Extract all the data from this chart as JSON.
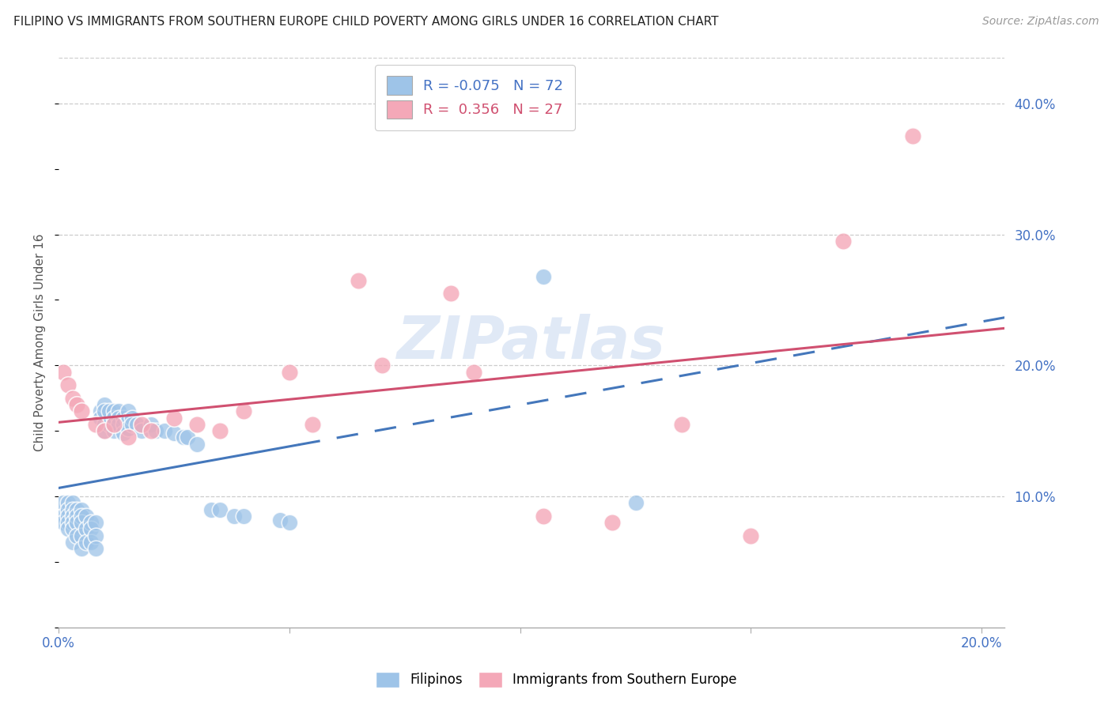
{
  "title": "FILIPINO VS IMMIGRANTS FROM SOUTHERN EUROPE CHILD POVERTY AMONG GIRLS UNDER 16 CORRELATION CHART",
  "source": "Source: ZipAtlas.com",
  "ylabel": "Child Poverty Among Girls Under 16",
  "xlim": [
    0.0,
    0.205
  ],
  "ylim": [
    0.0,
    0.435
  ],
  "yticks": [
    0.1,
    0.2,
    0.3,
    0.4
  ],
  "ytick_labels": [
    "10.0%",
    "20.0%",
    "30.0%",
    "40.0%"
  ],
  "xtick_positions": [
    0.0,
    0.05,
    0.1,
    0.15,
    0.2
  ],
  "xtick_labels": [
    "0.0%",
    "",
    "",
    "",
    "20.0%"
  ],
  "blue_color": "#9ec4e8",
  "pink_color": "#f4a8b8",
  "trend_blue": "#4477bb",
  "trend_pink": "#d05070",
  "watermark_text": "ZIPatlas",
  "blue_scatter_x": [
    0.001,
    0.001,
    0.001,
    0.002,
    0.002,
    0.002,
    0.002,
    0.002,
    0.003,
    0.003,
    0.003,
    0.003,
    0.003,
    0.003,
    0.004,
    0.004,
    0.004,
    0.004,
    0.005,
    0.005,
    0.005,
    0.005,
    0.005,
    0.006,
    0.006,
    0.006,
    0.007,
    0.007,
    0.007,
    0.008,
    0.008,
    0.008,
    0.009,
    0.009,
    0.01,
    0.01,
    0.01,
    0.01,
    0.011,
    0.011,
    0.012,
    0.012,
    0.012,
    0.013,
    0.013,
    0.013,
    0.014,
    0.014,
    0.014,
    0.015,
    0.015,
    0.015,
    0.016,
    0.016,
    0.017,
    0.018,
    0.02,
    0.021,
    0.023,
    0.025,
    0.027,
    0.028,
    0.03,
    0.033,
    0.035,
    0.038,
    0.04,
    0.048,
    0.05,
    0.105,
    0.125
  ],
  "blue_scatter_y": [
    0.095,
    0.085,
    0.08,
    0.095,
    0.09,
    0.085,
    0.08,
    0.075,
    0.095,
    0.09,
    0.085,
    0.08,
    0.075,
    0.065,
    0.09,
    0.085,
    0.08,
    0.07,
    0.09,
    0.085,
    0.08,
    0.07,
    0.06,
    0.085,
    0.075,
    0.065,
    0.08,
    0.075,
    0.065,
    0.08,
    0.07,
    0.06,
    0.165,
    0.16,
    0.17,
    0.165,
    0.155,
    0.15,
    0.165,
    0.155,
    0.165,
    0.16,
    0.15,
    0.165,
    0.16,
    0.155,
    0.16,
    0.155,
    0.148,
    0.165,
    0.158,
    0.152,
    0.16,
    0.155,
    0.155,
    0.15,
    0.155,
    0.15,
    0.15,
    0.148,
    0.145,
    0.145,
    0.14,
    0.09,
    0.09,
    0.085,
    0.085,
    0.082,
    0.08,
    0.268,
    0.095
  ],
  "pink_scatter_x": [
    0.001,
    0.002,
    0.003,
    0.004,
    0.005,
    0.008,
    0.01,
    0.012,
    0.015,
    0.018,
    0.02,
    0.025,
    0.03,
    0.035,
    0.04,
    0.05,
    0.055,
    0.065,
    0.07,
    0.085,
    0.09,
    0.105,
    0.12,
    0.135,
    0.15,
    0.17,
    0.185
  ],
  "pink_scatter_y": [
    0.195,
    0.185,
    0.175,
    0.17,
    0.165,
    0.155,
    0.15,
    0.155,
    0.145,
    0.155,
    0.15,
    0.16,
    0.155,
    0.15,
    0.165,
    0.195,
    0.155,
    0.265,
    0.2,
    0.255,
    0.195,
    0.085,
    0.08,
    0.155,
    0.07,
    0.295,
    0.375
  ]
}
